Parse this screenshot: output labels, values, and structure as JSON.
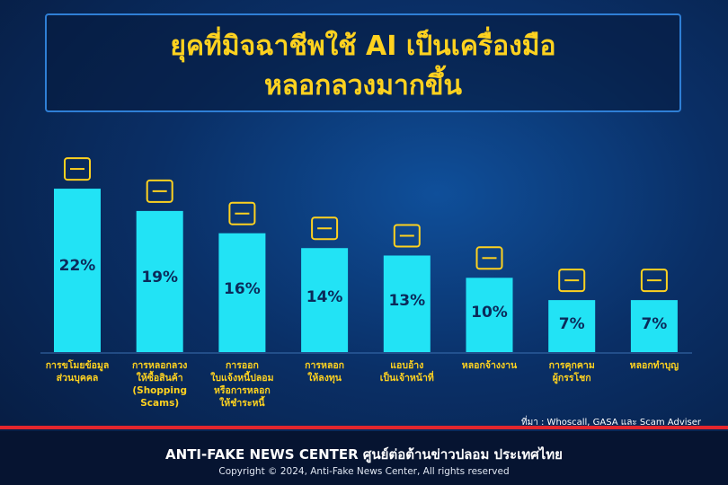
{
  "chart_data": {
    "type": "bar",
    "title": "ยุคที่มิจฉาชีพใช้ AI เป็นเครื่องมือ\nหลอกลวงมากขึ้น",
    "categories": [
      "การขโมยข้อมูล\nส่วนบุคคล",
      "การหลอกลวง\nให้ซื้อสินค้า\n(Shopping Scams)",
      "การออก\nใบแจ้งหนี้ปลอม\nหรือการหลอก\nให้ชำระหนี้",
      "การหลอก\nให้ลงทุน",
      "แอบอ้าง\nเป็นเจ้าหน้าที่",
      "หลอกจ้างงาน",
      "การคุกคาม\nผู้กรรโชก",
      "หลอกทำบุญ"
    ],
    "values": [
      22,
      19,
      16,
      14,
      13,
      10,
      7,
      7
    ],
    "value_labels": [
      "22%",
      "19%",
      "16%",
      "14%",
      "13%",
      "10%",
      "7%",
      "7%"
    ],
    "color": "#22e3f5",
    "ylim": [
      0,
      26
    ],
    "source": "ที่มา : Whoscall, GASA และ Scam Adviser"
  },
  "footer": {
    "org": "ANTI-FAKE NEWS CENTER  ศูนย์ต่อต้านข่าวปลอม ประเทศไทย",
    "copyright": "Copyright © 2024, Anti-Fake News Center, All rights reserved"
  }
}
